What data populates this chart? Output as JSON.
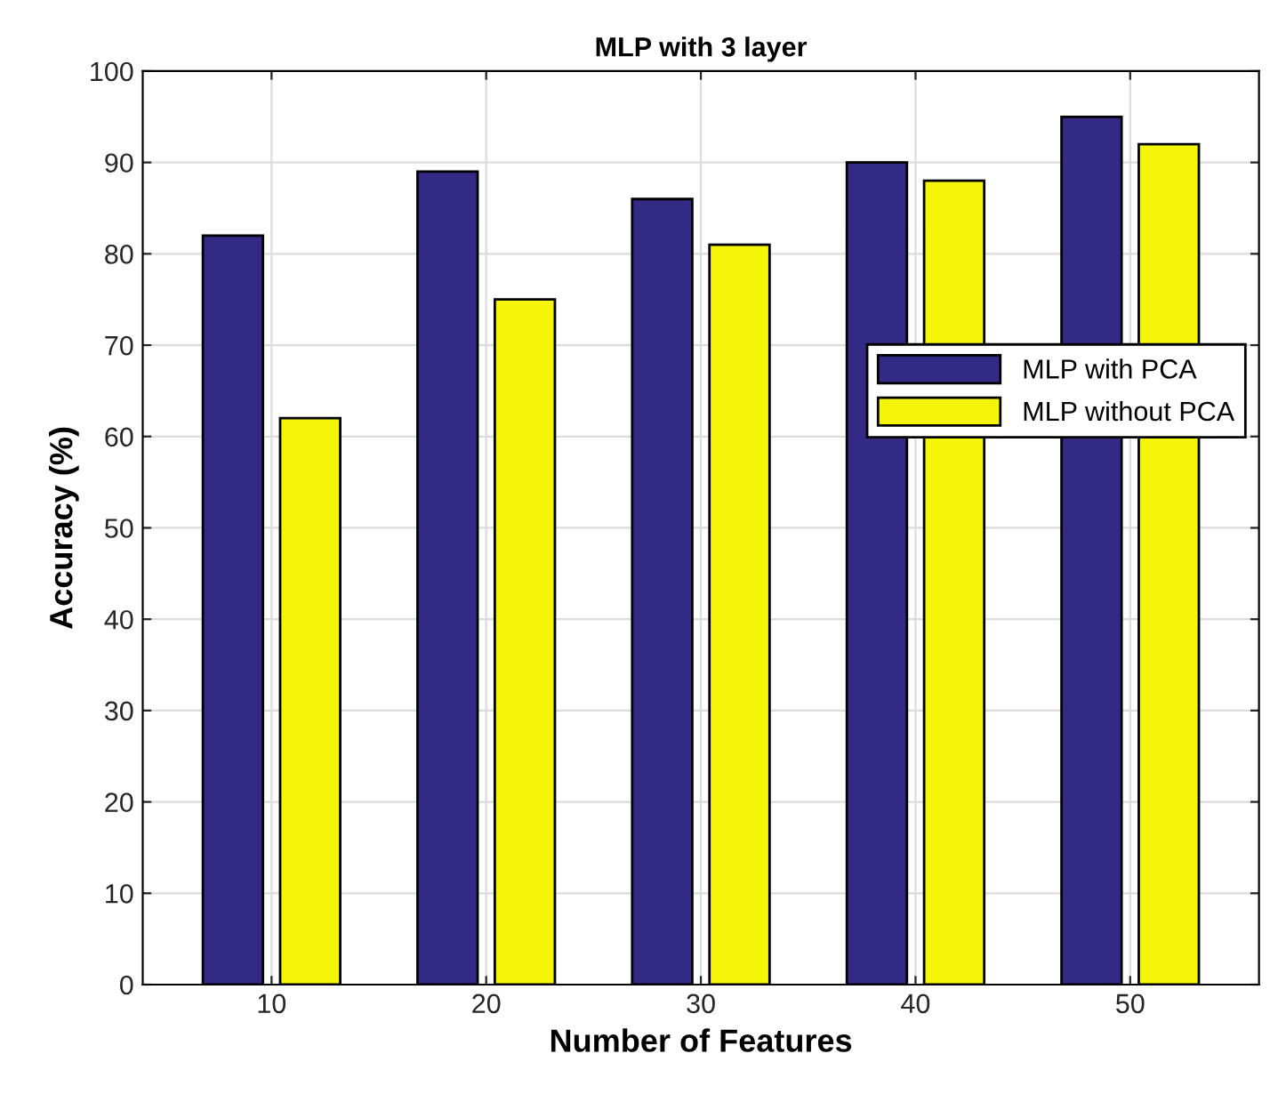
{
  "chart_data": {
    "type": "bar",
    "title": "MLP with 3 layer",
    "xlabel": "Number of Features",
    "ylabel": "Accuracy (%)",
    "categories": [
      "10",
      "20",
      "30",
      "40",
      "50"
    ],
    "series": [
      {
        "name": "MLP with PCA",
        "color": "#332a85",
        "values": [
          82,
          89,
          86,
          90,
          95
        ]
      },
      {
        "name": "MLP without PCA",
        "color": "#f5f50a",
        "values": [
          62,
          75,
          81,
          88,
          92
        ]
      }
    ],
    "ylim": [
      0,
      100
    ],
    "yticks": [
      0,
      10,
      20,
      30,
      40,
      50,
      60,
      70,
      80,
      90,
      100
    ],
    "grid": true,
    "legend": "right"
  }
}
